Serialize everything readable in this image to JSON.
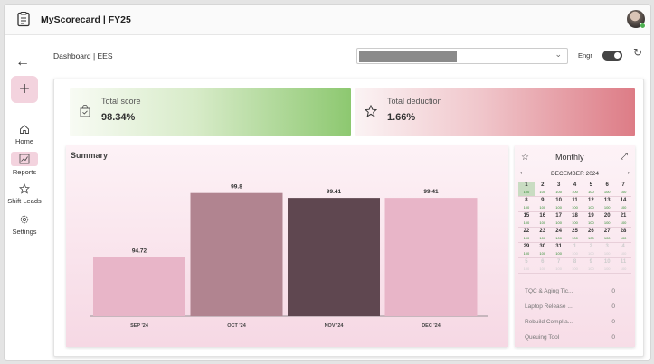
{
  "app": {
    "title": "MyScorecard | FY25"
  },
  "sidebar": {
    "back_icon": "arrow-left-icon",
    "add_icon": "plus-icon",
    "items": [
      {
        "label": "Home",
        "icon": "home-icon",
        "active": false
      },
      {
        "label": "Reports",
        "icon": "chart-icon",
        "active": true
      },
      {
        "label": "Shift Leads",
        "icon": "star-icon",
        "active": false
      },
      {
        "label": "Settings",
        "icon": "gear-icon",
        "active": false
      }
    ]
  },
  "header": {
    "breadcrumb": "Dashboard | EES",
    "toggle_label": "Engr",
    "toggle_on": true
  },
  "kpis": {
    "total_score": {
      "label": "Total score",
      "value": "98.34%",
      "color": "#8dc870"
    },
    "total_deduction": {
      "label": "Total deduction",
      "value": "1.66%",
      "color": "#dd7c86"
    }
  },
  "summary": {
    "title": "Summary"
  },
  "chart_data": {
    "type": "bar",
    "title": "Summary",
    "categories": [
      "SEP '24",
      "OCT '24",
      "NOV '24",
      "DEC '24"
    ],
    "values": [
      94.72,
      99.8,
      99.41,
      99.41
    ],
    "value_labels": [
      "94.72",
      "99.8",
      "99.41",
      "99.41"
    ],
    "colors": [
      "#e8b5c8",
      "#b18490",
      "#5f4750",
      "#e8b5c8"
    ],
    "xlabel": "",
    "ylabel": "",
    "ylim": [
      90,
      101
    ],
    "grid": false,
    "legend": "none"
  },
  "monthly": {
    "title": "Monthly",
    "month_label": "DECEMBER 2024",
    "prev_label": "‹",
    "next_label": "›",
    "days": [
      {
        "d": "1",
        "s": "100",
        "today": true
      },
      {
        "d": "2",
        "s": "100"
      },
      {
        "d": "3",
        "s": "100"
      },
      {
        "d": "4",
        "s": "100"
      },
      {
        "d": "5",
        "s": "100"
      },
      {
        "d": "6",
        "s": "100"
      },
      {
        "d": "7",
        "s": "100"
      },
      {
        "d": "8",
        "s": "100"
      },
      {
        "d": "9",
        "s": "100"
      },
      {
        "d": "10",
        "s": "100"
      },
      {
        "d": "11",
        "s": "100"
      },
      {
        "d": "12",
        "s": "100"
      },
      {
        "d": "13",
        "s": "100"
      },
      {
        "d": "14",
        "s": "100"
      },
      {
        "d": "15",
        "s": "100"
      },
      {
        "d": "16",
        "s": "100"
      },
      {
        "d": "17",
        "s": "100"
      },
      {
        "d": "18",
        "s": "100"
      },
      {
        "d": "19",
        "s": "100"
      },
      {
        "d": "20",
        "s": "100"
      },
      {
        "d": "21",
        "s": "100"
      },
      {
        "d": "22",
        "s": "100"
      },
      {
        "d": "23",
        "s": "100"
      },
      {
        "d": "24",
        "s": "100"
      },
      {
        "d": "25",
        "s": "100"
      },
      {
        "d": "26",
        "s": "100"
      },
      {
        "d": "27",
        "s": "100"
      },
      {
        "d": "28",
        "s": "100"
      },
      {
        "d": "29",
        "s": "100"
      },
      {
        "d": "30",
        "s": "100"
      },
      {
        "d": "31",
        "s": "100"
      },
      {
        "d": "1",
        "s": "100",
        "muted": true
      },
      {
        "d": "2",
        "s": "100",
        "muted": true
      },
      {
        "d": "3",
        "s": "100",
        "muted": true
      },
      {
        "d": "4",
        "s": "100",
        "muted": true
      },
      {
        "d": "5",
        "s": "100",
        "muted": true
      },
      {
        "d": "6",
        "s": "100",
        "muted": true
      },
      {
        "d": "7",
        "s": "100",
        "muted": true
      },
      {
        "d": "8",
        "s": "100",
        "muted": true
      },
      {
        "d": "9",
        "s": "100",
        "muted": true
      },
      {
        "d": "10",
        "s": "100",
        "muted": true
      },
      {
        "d": "11",
        "s": "100",
        "muted": true
      }
    ],
    "items": [
      {
        "name": "TQC & Aging Tic...",
        "value": "0"
      },
      {
        "name": "Laptop Release ...",
        "value": "0"
      },
      {
        "name": "Rebuild Complia...",
        "value": "0"
      },
      {
        "name": "Queuing Tool",
        "value": "0"
      }
    ]
  }
}
